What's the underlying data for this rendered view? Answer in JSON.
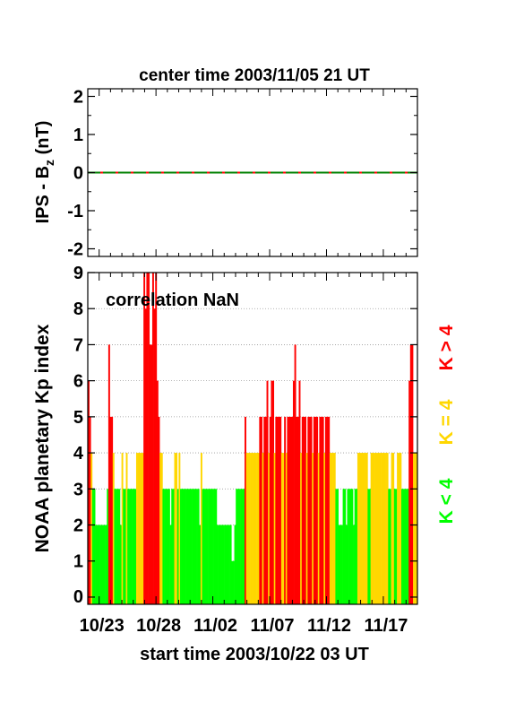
{
  "colors": {
    "low": "#00ff00",
    "mid": "#ffd700",
    "high": "#ff0000",
    "bz_pos": "#ff0000",
    "bz_neg": "#008000",
    "grid": "#9a9a9a"
  },
  "chart_data": [
    {
      "type": "line",
      "title": "center time 2003/11/05 21 UT",
      "ylabel_main": "IPS - B",
      "ylabel_sub": "z",
      "ylabel_unit": " (nT)",
      "ylim": [
        -2.2,
        2.2
      ],
      "yticks": [
        {
          "value": 2,
          "label": "2"
        },
        {
          "value": 1,
          "label": "1"
        },
        {
          "value": 0,
          "label": "0"
        },
        {
          "value": -1,
          "label": "-1"
        },
        {
          "value": -2,
          "label": "-2"
        }
      ],
      "series": [
        {
          "points": [
            [
              0,
              0
            ],
            [
              29,
              0
            ]
          ]
        }
      ]
    },
    {
      "type": "bar",
      "ylabel": "NOAA planetary Kp index",
      "annotation": "correlation NaN",
      "xlabel": "start time 2003/10/22 03 UT",
      "ylim": [
        -0.2,
        9
      ],
      "yticks": [
        "0",
        "1",
        "2",
        "3",
        "4",
        "5",
        "6",
        "7",
        "8",
        "9"
      ],
      "xlim_days": [
        0,
        29
      ],
      "xticks": [
        {
          "day": 1,
          "label": "10/23"
        },
        {
          "day": 6,
          "label": "10/28"
        },
        {
          "day": 11,
          "label": "11/02"
        },
        {
          "day": 16,
          "label": "11/07"
        },
        {
          "day": 21,
          "label": "11/12"
        },
        {
          "day": 26,
          "label": "11/17"
        }
      ],
      "legend": [
        {
          "text": "K < 4",
          "color": "#00ff00"
        },
        {
          "text": "K = 4",
          "color": "#ffd700"
        },
        {
          "text": "K > 4",
          "color": "#ff0000"
        }
      ],
      "kp": [
        6,
        5,
        4,
        3,
        3,
        2,
        2,
        2,
        2,
        2,
        2,
        2,
        2,
        3,
        7,
        5,
        5,
        4,
        3,
        3,
        3,
        3,
        2,
        4,
        3,
        3,
        4,
        3,
        3,
        3,
        3,
        3,
        3,
        4,
        4,
        4,
        4,
        4,
        9,
        8,
        9,
        9,
        7,
        7,
        9,
        8,
        9,
        6,
        5,
        4,
        4,
        3,
        3,
        3,
        3,
        3,
        2,
        3,
        3,
        4,
        4,
        3,
        4,
        3,
        3,
        3,
        3,
        3,
        3,
        3,
        3,
        3,
        3,
        3,
        3,
        3,
        2,
        4,
        3,
        3,
        3,
        3,
        3,
        3,
        3,
        3,
        3,
        3,
        2,
        2,
        2,
        2,
        2,
        2,
        2,
        2,
        2,
        2,
        1,
        1,
        2,
        3,
        3,
        3,
        3,
        3,
        3,
        5,
        4,
        4,
        4,
        4,
        4,
        4,
        4,
        4,
        4,
        5,
        5,
        4,
        5,
        5,
        6,
        4,
        5,
        6,
        6,
        4,
        5,
        5,
        5,
        5,
        4,
        4,
        5,
        4,
        5,
        5,
        5,
        5,
        6,
        7,
        5,
        5,
        6,
        4,
        5,
        5,
        5,
        4,
        5,
        5,
        5,
        4,
        5,
        5,
        5,
        4,
        5,
        5,
        5,
        4,
        5,
        5,
        5,
        4,
        4,
        4,
        4,
        3,
        3,
        2,
        2,
        2,
        3,
        3,
        2,
        3,
        3,
        3,
        3,
        2,
        3,
        3,
        4,
        4,
        4,
        4,
        4,
        4,
        4,
        3,
        3,
        4,
        4,
        4,
        4,
        4,
        4,
        4,
        4,
        4,
        4,
        4,
        4,
        3,
        3,
        4,
        4,
        3,
        3,
        4,
        4,
        4,
        3,
        3,
        3,
        3,
        3,
        6,
        7,
        7,
        4,
        4,
        4
      ]
    }
  ]
}
